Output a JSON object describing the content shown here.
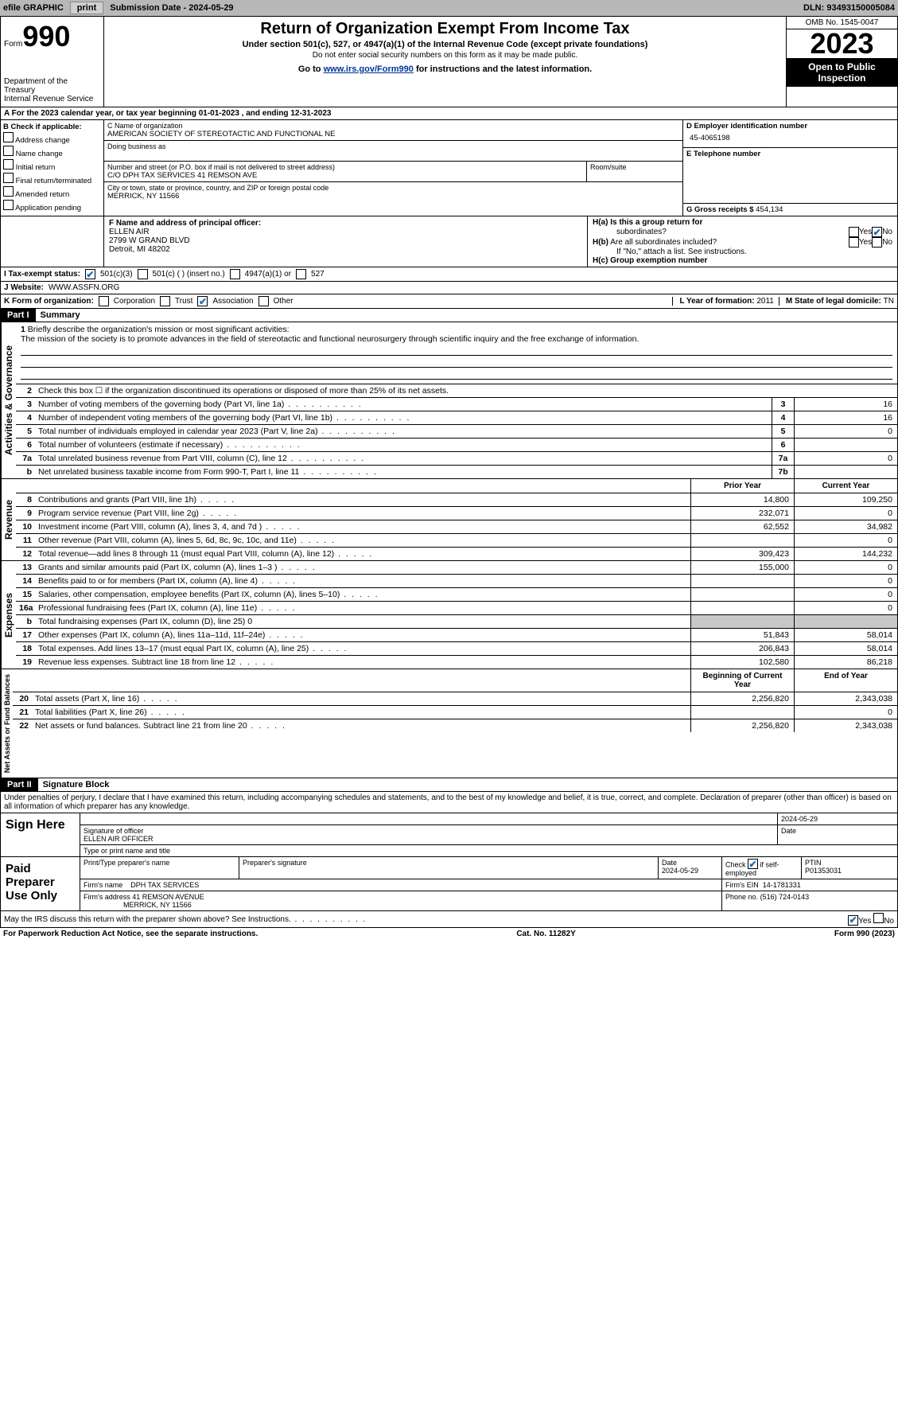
{
  "topbar": {
    "efile": "efile GRAPHIC",
    "print": "print",
    "subdate_label": "Submission Date - ",
    "subdate": "2024-05-29",
    "dln_label": "DLN: ",
    "dln": "93493150005084"
  },
  "header": {
    "form_label": "Form",
    "form_num": "990",
    "dept": "Department of the Treasury",
    "irs": "Internal Revenue Service",
    "title": "Return of Organization Exempt From Income Tax",
    "sub1": "Under section 501(c), 527, or 4947(a)(1) of the Internal Revenue Code (except private foundations)",
    "sub2": "Do not enter social security numbers on this form as it may be made public.",
    "sub3_pre": "Go to ",
    "sub3_link": "www.irs.gov/Form990",
    "sub3_post": " for instructions and the latest information.",
    "omb": "OMB No. 1545-0047",
    "year": "2023",
    "inspect": "Open to Public Inspection"
  },
  "row_a": "A For the 2023 calendar year, or tax year beginning 01-01-2023   , and ending 12-31-2023",
  "col_b": {
    "header": "B Check if applicable:",
    "items": [
      "Address change",
      "Name change",
      "Initial return",
      "Final return/terminated",
      "Amended return",
      "Application pending"
    ]
  },
  "col_c": {
    "name_label": "C Name of organization",
    "name": "AMERICAN SOCIETY OF STEREOTACTIC AND FUNCTIONAL NE",
    "dba_label": "Doing business as",
    "addr_label": "Number and street (or P.O. box if mail is not delivered to street address)",
    "addr": "C/O DPH TAX SERVICES 41 REMSON AVE",
    "suite_label": "Room/suite",
    "city_label": "City or town, state or province, country, and ZIP or foreign postal code",
    "city": "MERRICK, NY  11566"
  },
  "col_d": {
    "ein_label": "D Employer identification number",
    "ein": "45-4065198",
    "phone_label": "E Telephone number",
    "gross_label": "G Gross receipts $ ",
    "gross": "454,134"
  },
  "officer": {
    "label": "F  Name and address of principal officer:",
    "name": "ELLEN AIR",
    "addr": "2799 W GRAND BLVD",
    "city": "Detroit, MI  48202"
  },
  "h": {
    "a": "H(a)  Is this a group return for",
    "a2": "subordinates?",
    "b": "H(b)  Are all subordinates included?",
    "b2": "If \"No,\" attach a list. See instructions.",
    "c": "H(c)  Group exemption number"
  },
  "tax_status": {
    "label": "I    Tax-exempt status:",
    "opt1": "501(c)(3)",
    "opt2": "501(c) (  ) (insert no.)",
    "opt3": "4947(a)(1) or",
    "opt4": "527"
  },
  "website": {
    "label": "J    Website:",
    "value": "WWW.ASSFN.ORG"
  },
  "k": {
    "label": "K Form of organization:",
    "opts": [
      "Corporation",
      "Trust",
      "Association",
      "Other"
    ]
  },
  "l": {
    "label": "L Year of formation: ",
    "value": "2011"
  },
  "m": {
    "label": "M State of legal domicile: ",
    "value": "TN"
  },
  "part1": {
    "label": "Part I",
    "title": "Summary"
  },
  "mission": {
    "n": "1",
    "label": "Briefly describe the organization's mission or most significant activities:",
    "text": "The mission of the society is to promote advances in the field of stereotactic and functional neurosurgery through scientific inquiry and the free exchange of information."
  },
  "gov_rows": [
    {
      "n": "2",
      "d": "Check this box ☐  if the organization discontinued its operations or disposed of more than 25% of its net assets."
    },
    {
      "n": "3",
      "d": "Number of voting members of the governing body (Part VI, line 1a)",
      "box": "3",
      "val": "16"
    },
    {
      "n": "4",
      "d": "Number of independent voting members of the governing body (Part VI, line 1b)",
      "box": "4",
      "val": "16"
    },
    {
      "n": "5",
      "d": "Total number of individuals employed in calendar year 2023 (Part V, line 2a)",
      "box": "5",
      "val": "0"
    },
    {
      "n": "6",
      "d": "Total number of volunteers (estimate if necessary)",
      "box": "6",
      "val": ""
    },
    {
      "n": "7a",
      "d": "Total unrelated business revenue from Part VIII, column (C), line 12",
      "box": "7a",
      "val": "0"
    },
    {
      "n": "b",
      "d": "Net unrelated business taxable income from Form 990-T, Part I, line 11",
      "box": "7b",
      "val": ""
    }
  ],
  "col_hdrs": {
    "prior": "Prior Year",
    "current": "Current Year"
  },
  "rev_rows": [
    {
      "n": "8",
      "d": "Contributions and grants (Part VIII, line 1h)",
      "p": "14,800",
      "c": "109,250"
    },
    {
      "n": "9",
      "d": "Program service revenue (Part VIII, line 2g)",
      "p": "232,071",
      "c": "0"
    },
    {
      "n": "10",
      "d": "Investment income (Part VIII, column (A), lines 3, 4, and 7d )",
      "p": "62,552",
      "c": "34,982"
    },
    {
      "n": "11",
      "d": "Other revenue (Part VIII, column (A), lines 5, 6d, 8c, 9c, 10c, and 11e)",
      "p": "",
      "c": "0"
    },
    {
      "n": "12",
      "d": "Total revenue—add lines 8 through 11 (must equal Part VIII, column (A), line 12)",
      "p": "309,423",
      "c": "144,232"
    }
  ],
  "exp_rows": [
    {
      "n": "13",
      "d": "Grants and similar amounts paid (Part IX, column (A), lines 1–3 )",
      "p": "155,000",
      "c": "0"
    },
    {
      "n": "14",
      "d": "Benefits paid to or for members (Part IX, column (A), line 4)",
      "p": "",
      "c": "0"
    },
    {
      "n": "15",
      "d": "Salaries, other compensation, employee benefits (Part IX, column (A), lines 5–10)",
      "p": "",
      "c": "0"
    },
    {
      "n": "16a",
      "d": "Professional fundraising fees (Part IX, column (A), line 11e)",
      "p": "",
      "c": "0"
    },
    {
      "n": "b",
      "d": "Total fundraising expenses (Part IX, column (D), line 25) 0",
      "shade": true
    },
    {
      "n": "17",
      "d": "Other expenses (Part IX, column (A), lines 11a–11d, 11f–24e)",
      "p": "51,843",
      "c": "58,014"
    },
    {
      "n": "18",
      "d": "Total expenses. Add lines 13–17 (must equal Part IX, column (A), line 25)",
      "p": "206,843",
      "c": "58,014"
    },
    {
      "n": "19",
      "d": "Revenue less expenses. Subtract line 18 from line 12",
      "p": "102,580",
      "c": "86,218"
    }
  ],
  "net_hdrs": {
    "begin": "Beginning of Current Year",
    "end": "End of Year"
  },
  "net_rows": [
    {
      "n": "20",
      "d": "Total assets (Part X, line 16)",
      "p": "2,256,820",
      "c": "2,343,038"
    },
    {
      "n": "21",
      "d": "Total liabilities (Part X, line 26)",
      "p": "",
      "c": "0"
    },
    {
      "n": "22",
      "d": "Net assets or fund balances. Subtract line 21 from line 20",
      "p": "2,256,820",
      "c": "2,343,038"
    }
  ],
  "vtabs": {
    "gov": "Activities & Governance",
    "rev": "Revenue",
    "exp": "Expenses",
    "net": "Net Assets or Fund Balances"
  },
  "part2": {
    "label": "Part II",
    "title": "Signature Block"
  },
  "perjury": "Under penalties of perjury, I declare that I have examined this return, including accompanying schedules and statements, and to the best of my knowledge and belief, it is true, correct, and complete. Declaration of preparer (other than officer) is based on all information of which preparer has any knowledge.",
  "sign": {
    "here": "Sign Here",
    "sig_label": "Signature of officer",
    "name": "ELLEN AIR OFFICER",
    "date": "2024-05-29",
    "type_label": "Type or print name and title",
    "date_label": "Date"
  },
  "paid": {
    "label": "Paid Preparer Use Only",
    "prep_name_l": "Print/Type preparer's name",
    "prep_sig_l": "Preparer's signature",
    "date_l": "Date",
    "date": "2024-05-29",
    "check_l": "Check ☑ if self-employed",
    "ptin_l": "PTIN",
    "ptin": "P01353031",
    "firm_name_l": "Firm's name",
    "firm_name": "DPH TAX SERVICES",
    "firm_ein_l": "Firm's EIN",
    "firm_ein": "14-1781331",
    "firm_addr_l": "Firm's address",
    "firm_addr": "41 REMSON AVENUE",
    "firm_city": "MERRICK, NY  11566",
    "phone_l": "Phone no.",
    "phone": "(516) 724-0143"
  },
  "discuss": "May the IRS discuss this return with the preparer shown above? See Instructions.",
  "footer": {
    "left": "For Paperwork Reduction Act Notice, see the separate instructions.",
    "mid": "Cat. No. 11282Y",
    "right": "Form 990 (2023)"
  },
  "yesno": {
    "yes": "Yes",
    "no": "No"
  }
}
